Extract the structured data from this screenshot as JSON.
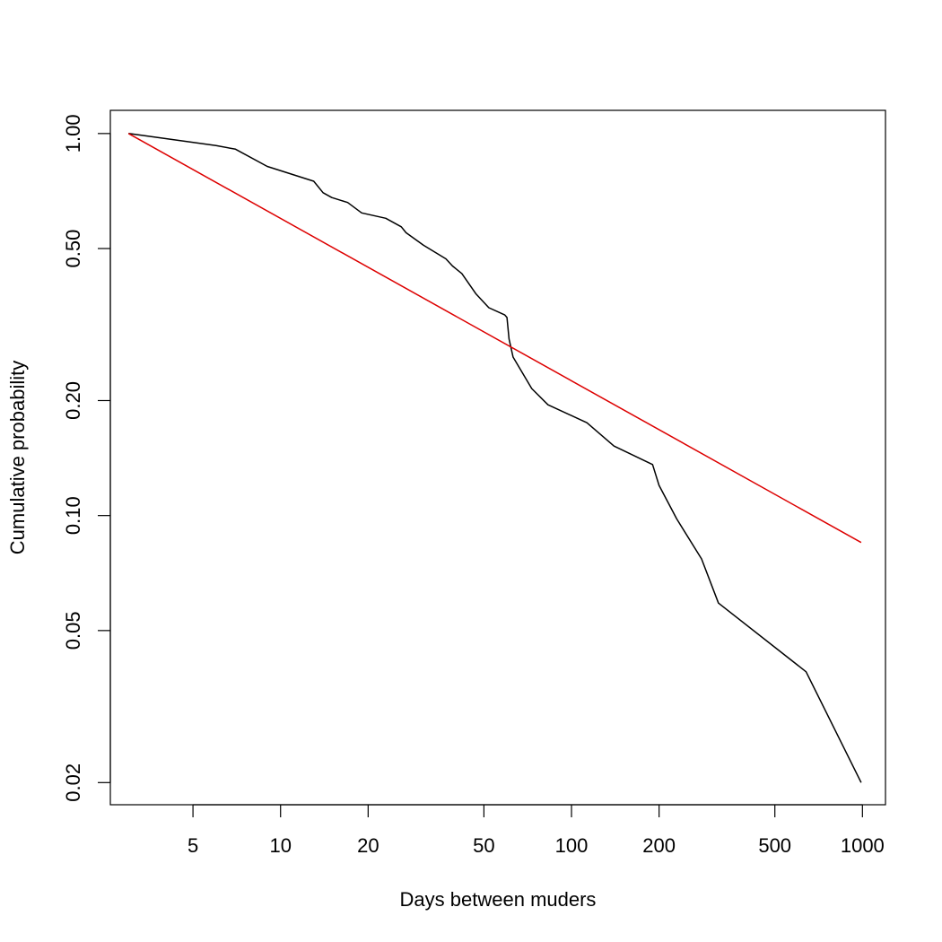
{
  "chart_data": {
    "type": "line",
    "xlabel": "Days between muders",
    "ylabel": "Cumulative probability",
    "x_scale": "log",
    "y_scale": "log",
    "xlim": [
      2.6,
      1200
    ],
    "ylim": [
      0.0175,
      1.15
    ],
    "x_ticks": [
      {
        "value": 5,
        "label": "5"
      },
      {
        "value": 10,
        "label": "10"
      },
      {
        "value": 20,
        "label": "20"
      },
      {
        "value": 50,
        "label": "50"
      },
      {
        "value": 100,
        "label": "100"
      },
      {
        "value": 200,
        "label": "200"
      },
      {
        "value": 500,
        "label": "500"
      },
      {
        "value": 1000,
        "label": "1000"
      }
    ],
    "y_ticks": [
      {
        "value": 0.02,
        "label": "0.02"
      },
      {
        "value": 0.05,
        "label": "0.05"
      },
      {
        "value": 0.1,
        "label": "0.10"
      },
      {
        "value": 0.2,
        "label": "0.20"
      },
      {
        "value": 0.5,
        "label": "0.50"
      },
      {
        "value": 1.0,
        "label": "1.00"
      }
    ],
    "grid": false,
    "legend": "none",
    "series": [
      {
        "color": "#000000",
        "x": [
          3,
          6,
          7,
          9,
          13,
          14,
          15,
          17,
          19,
          23,
          26,
          27,
          31,
          37,
          39,
          42,
          47,
          52,
          59,
          60,
          61,
          63,
          73,
          83,
          113,
          140,
          190,
          200,
          230,
          280,
          320,
          640,
          990
        ],
        "y": [
          1.0,
          0.93,
          0.91,
          0.82,
          0.75,
          0.7,
          0.68,
          0.66,
          0.62,
          0.6,
          0.57,
          0.55,
          0.51,
          0.47,
          0.45,
          0.43,
          0.38,
          0.35,
          0.335,
          0.33,
          0.29,
          0.26,
          0.215,
          0.195,
          0.175,
          0.152,
          0.136,
          0.12,
          0.098,
          0.077,
          0.059,
          0.039,
          0.02
        ]
      },
      {
        "color": "#dd0000",
        "x": [
          3,
          990
        ],
        "y": [
          1.0,
          0.085
        ]
      }
    ]
  }
}
